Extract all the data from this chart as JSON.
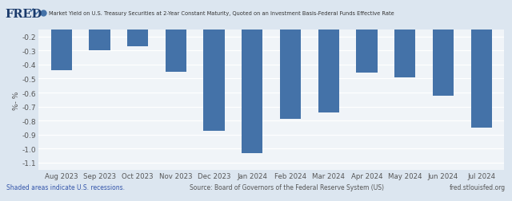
{
  "title": "Market Yield on U.S. Treasury Securities at 2-Year Constant Maturity, Quoted on an Investment Basis-Federal Funds Effective Rate",
  "ylabel": "%- %",
  "categories": [
    "Aug 2023",
    "Sep 2023",
    "Oct 2023",
    "Nov 2023",
    "Dec 2023",
    "Jan 2024",
    "Feb 2024",
    "Mar 2024",
    "Apr 2024",
    "May 2024",
    "Jun 2024",
    "Jul 2024"
  ],
  "values": [
    -0.44,
    -0.3,
    -0.27,
    -0.45,
    -0.87,
    -1.03,
    -0.79,
    -0.74,
    -0.46,
    -0.49,
    -0.62,
    -0.85
  ],
  "bar_color": "#4472a8",
  "bg_color": "#dce6f0",
  "plot_bg_color": "#f0f4f8",
  "ylim_min": -1.15,
  "ylim_max": -0.15,
  "yticks": [
    -0.2,
    -0.3,
    -0.4,
    -0.5,
    -0.6,
    -0.7,
    -0.8,
    -0.9,
    -1.0,
    -1.1
  ],
  "footer_left": "Shaded areas indicate U.S. recessions.",
  "footer_center": "Source: Board of Governors of the Federal Reserve System (US)",
  "footer_right": "fred.stlouisfed.org",
  "fred_text": "FRED"
}
